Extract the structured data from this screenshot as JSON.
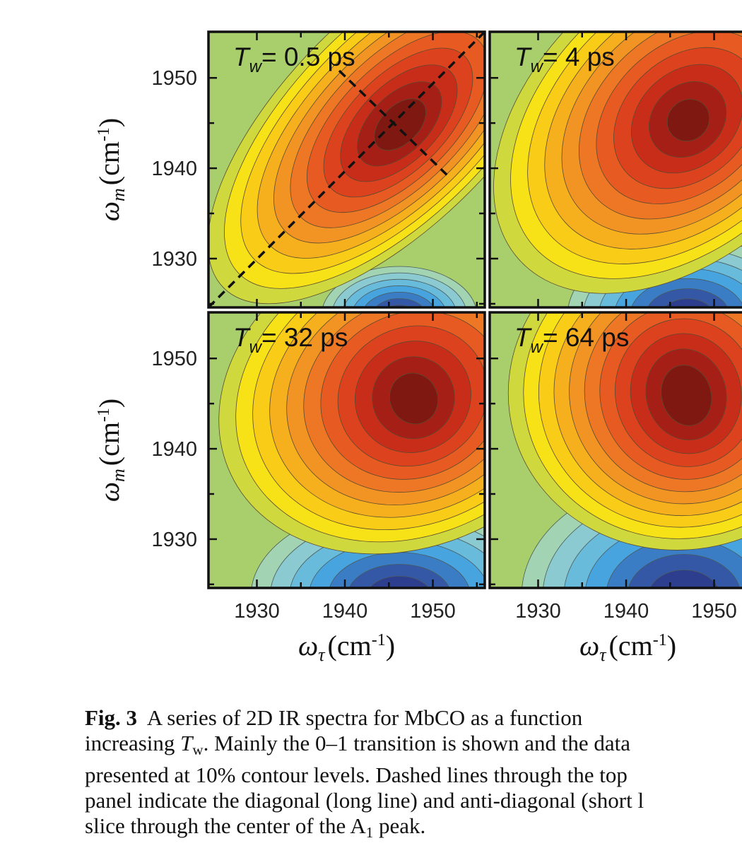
{
  "figure": {
    "panels": [
      {
        "title": {
          "symbol": "T",
          "subscript": "w",
          "text": "= 0.5 ps"
        }
      },
      {
        "title": {
          "symbol": "T",
          "subscript": "w",
          "text": "= 4 ps"
        }
      },
      {
        "title": {
          "symbol": "T",
          "subscript": "w",
          "text": "= 32 ps"
        }
      },
      {
        "title": {
          "symbol": "T",
          "subscript": "w",
          "text": "= 64 ps"
        }
      }
    ],
    "xlim": [
      1924.5,
      1955.9
    ],
    "ylim": [
      1924.6,
      1955.1
    ],
    "xticks": [
      1930,
      1940,
      1950
    ],
    "yticks": [
      1930,
      1940,
      1950
    ],
    "minor_xticks": [
      1935,
      1945,
      1955
    ],
    "minor_yticks": [
      1925,
      1935,
      1945
    ],
    "xlabel": {
      "symbol": "ω",
      "subscript": "τ",
      "unit": "(cm",
      "exponent": "-1",
      "close": ")"
    },
    "ylabel": {
      "symbol": "ω",
      "subscript": "m",
      "unit": "(cm",
      "exponent": "-1",
      "close": ")"
    }
  },
  "caption": {
    "lines": [
      [
        {
          "text": "Fig. 3",
          "style": "bold"
        },
        {
          "text": "  A series of 2D IR spectra for MbCO as a function"
        }
      ],
      [
        {
          "text": "increasing "
        },
        {
          "text": "T",
          "style": "italic"
        },
        {
          "text": "w",
          "style": "sub"
        },
        {
          "text": ". Mainly the 0–1 transition is shown and the data"
        }
      ],
      [
        {
          "text": "presented at 10% contour levels. Dashed lines through the top"
        }
      ],
      [
        {
          "text": "panel indicate the diagonal (long line) and anti-diagonal (short l"
        }
      ],
      [
        {
          "text": "slice through the center of the A"
        },
        {
          "text": "1",
          "style": "sub"
        },
        {
          "text": " peak."
        }
      ]
    ]
  }
}
